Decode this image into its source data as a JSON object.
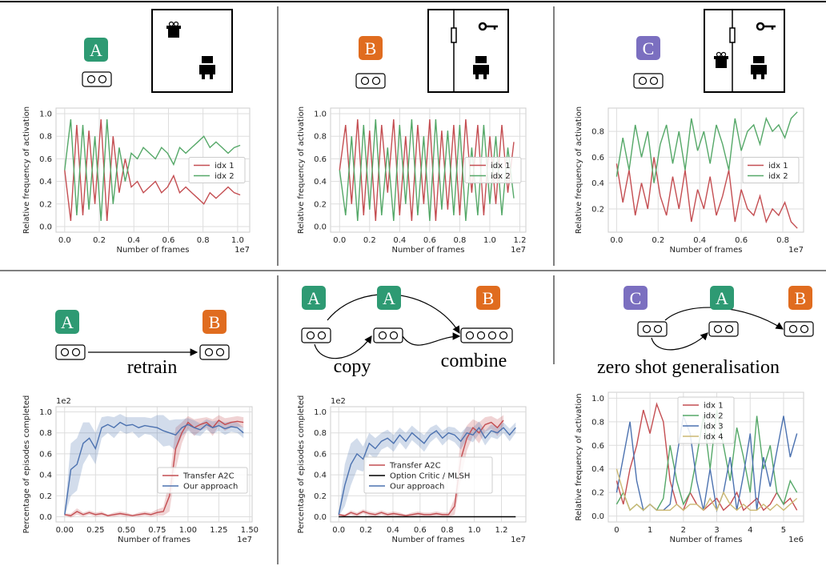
{
  "chart_data": [
    {
      "type": "line",
      "xlabel": "Number of frames",
      "ylabel": "Relative frequency of activation",
      "x_offset": "1e7",
      "diagram": {
        "badges": [
          "A"
        ]
      },
      "x": [
        0,
        0.035,
        0.07,
        0.105,
        0.14,
        0.175,
        0.21,
        0.245,
        0.28,
        0.315,
        0.35,
        0.385,
        0.42,
        0.455,
        0.49,
        0.525,
        0.56,
        0.595,
        0.63,
        0.665,
        0.7,
        0.735,
        0.77,
        0.805,
        0.84,
        0.875,
        0.91,
        0.945,
        0.98,
        1.015
      ],
      "series": [
        {
          "name": "idx 1",
          "color": "#c44e52",
          "values": [
            0.5,
            0.05,
            0.9,
            0.1,
            0.85,
            0.2,
            0.95,
            0.05,
            0.8,
            0.3,
            0.6,
            0.35,
            0.4,
            0.3,
            0.35,
            0.4,
            0.3,
            0.35,
            0.45,
            0.3,
            0.35,
            0.3,
            0.25,
            0.2,
            0.3,
            0.25,
            0.3,
            0.35,
            0.3,
            0.28
          ]
        },
        {
          "name": "idx 2",
          "color": "#55a868",
          "values": [
            0.5,
            0.95,
            0.1,
            0.9,
            0.15,
            0.8,
            0.05,
            0.95,
            0.2,
            0.7,
            0.4,
            0.65,
            0.6,
            0.7,
            0.65,
            0.6,
            0.7,
            0.65,
            0.55,
            0.7,
            0.65,
            0.7,
            0.75,
            0.8,
            0.7,
            0.75,
            0.7,
            0.65,
            0.7,
            0.72
          ]
        }
      ],
      "xlim": [
        -0.05,
        1.07
      ],
      "xticks": [
        {
          "value": 0,
          "label": "0.0"
        },
        0.2,
        0.4,
        0.6,
        0.8,
        {
          "value": 1,
          "label": "1.0"
        }
      ],
      "ylim": [
        -0.05,
        1.05
      ],
      "yticks": [
        {
          "value": 0,
          "label": "0.0"
        },
        0.2,
        0.4,
        0.6,
        0.8,
        {
          "value": 1,
          "label": "1.0"
        }
      ],
      "grid": true,
      "legend": "center right"
    },
    {
      "type": "line",
      "xlabel": "Number of frames",
      "ylabel": "Relative frequency of activation",
      "x_offset": "1e7",
      "diagram": {
        "badges": [
          "B"
        ]
      },
      "x": [
        0,
        0.04,
        0.08,
        0.12,
        0.16,
        0.2,
        0.24,
        0.28,
        0.32,
        0.36,
        0.4,
        0.44,
        0.48,
        0.52,
        0.56,
        0.6,
        0.64,
        0.68,
        0.72,
        0.76,
        0.8,
        0.84,
        0.88,
        0.92,
        0.96,
        1.0,
        1.04,
        1.08,
        1.12,
        1.16
      ],
      "series": [
        {
          "name": "idx 1",
          "color": "#c44e52",
          "values": [
            0.5,
            0.9,
            0.2,
            0.95,
            0.1,
            0.85,
            0.05,
            0.9,
            0.3,
            0.95,
            0.1,
            0.8,
            0.05,
            0.9,
            0.2,
            0.95,
            0.05,
            0.85,
            0.15,
            0.9,
            0.1,
            0.95,
            0.3,
            0.9,
            0.1,
            0.8,
            0.2,
            0.9,
            0.3,
            0.75
          ]
        },
        {
          "name": "idx 2",
          "color": "#55a868",
          "values": [
            0.5,
            0.1,
            0.8,
            0.05,
            0.9,
            0.15,
            0.95,
            0.1,
            0.7,
            0.05,
            0.9,
            0.2,
            0.95,
            0.1,
            0.8,
            0.05,
            0.95,
            0.15,
            0.85,
            0.1,
            0.9,
            0.05,
            0.7,
            0.1,
            0.9,
            0.2,
            0.8,
            0.1,
            0.7,
            0.25
          ]
        }
      ],
      "xlim": [
        -0.06,
        1.24
      ],
      "xticks": [
        {
          "value": 0,
          "label": "0.0"
        },
        0.2,
        0.4,
        0.6,
        0.8,
        {
          "value": 1,
          "label": "1.0"
        },
        1.2
      ],
      "ylim": [
        -0.05,
        1.05
      ],
      "yticks": [
        {
          "value": 0,
          "label": "0.0"
        },
        0.2,
        0.4,
        0.6,
        0.8,
        {
          "value": 1,
          "label": "1.0"
        }
      ],
      "grid": true,
      "legend": "center right"
    },
    {
      "type": "line",
      "xlabel": "Number of frames",
      "ylabel": "Relative frequency of activation",
      "x_offset": "1e7",
      "diagram": {
        "badges": [
          "C"
        ]
      },
      "x": [
        0,
        0.03,
        0.06,
        0.09,
        0.12,
        0.15,
        0.18,
        0.21,
        0.24,
        0.27,
        0.3,
        0.33,
        0.36,
        0.39,
        0.42,
        0.45,
        0.48,
        0.51,
        0.54,
        0.57,
        0.6,
        0.63,
        0.66,
        0.69,
        0.72,
        0.75,
        0.78,
        0.81,
        0.84,
        0.87
      ],
      "series": [
        {
          "name": "idx 1",
          "color": "#c44e52",
          "values": [
            0.55,
            0.25,
            0.5,
            0.15,
            0.4,
            0.2,
            0.6,
            0.3,
            0.15,
            0.45,
            0.2,
            0.5,
            0.1,
            0.35,
            0.2,
            0.45,
            0.15,
            0.3,
            0.5,
            0.1,
            0.35,
            0.2,
            0.15,
            0.3,
            0.1,
            0.2,
            0.15,
            0.25,
            0.1,
            0.05
          ]
        },
        {
          "name": "idx 2",
          "color": "#55a868",
          "values": [
            0.45,
            0.75,
            0.5,
            0.85,
            0.6,
            0.8,
            0.4,
            0.7,
            0.85,
            0.55,
            0.8,
            0.5,
            0.9,
            0.65,
            0.8,
            0.55,
            0.85,
            0.7,
            0.5,
            0.9,
            0.65,
            0.8,
            0.85,
            0.7,
            0.9,
            0.8,
            0.85,
            0.75,
            0.9,
            0.95
          ]
        }
      ],
      "xlim": [
        -0.04,
        0.9
      ],
      "xticks": [
        {
          "value": 0,
          "label": "0.0"
        },
        0.2,
        0.4,
        0.6,
        0.8
      ],
      "ylim": [
        0.02,
        0.98
      ],
      "yticks": [
        0.2,
        0.4,
        0.6,
        0.8
      ],
      "grid": true,
      "legend": "center right"
    },
    {
      "type": "line",
      "xlabel": "Number of frames",
      "ylabel": "Percentage of episodes completed",
      "x_offset": "1e7",
      "y_offset": "1e2",
      "diagram": {
        "badges": [
          "A",
          "B"
        ],
        "captions": [
          "retrain"
        ]
      },
      "x": [
        0,
        0.05,
        0.1,
        0.15,
        0.2,
        0.25,
        0.3,
        0.35,
        0.4,
        0.45,
        0.5,
        0.55,
        0.6,
        0.65,
        0.7,
        0.75,
        0.8,
        0.85,
        0.9,
        0.95,
        1.0,
        1.05,
        1.1,
        1.15,
        1.2,
        1.25,
        1.3,
        1.35,
        1.4,
        1.45
      ],
      "series": [
        {
          "name": "Transfer A2C",
          "color": "#c44e52",
          "values": [
            0.02,
            0.01,
            0.05,
            0.02,
            0.04,
            0.02,
            0.03,
            0.01,
            0.02,
            0.03,
            0.02,
            0.01,
            0.02,
            0.03,
            0.02,
            0.04,
            0.05,
            0.2,
            0.65,
            0.8,
            0.9,
            0.85,
            0.88,
            0.9,
            0.85,
            0.92,
            0.88,
            0.9,
            0.91,
            0.9
          ],
          "error": [
            0.01,
            0.02,
            0.03,
            0.02,
            0.02,
            0.02,
            0.02,
            0.01,
            0.02,
            0.02,
            0.02,
            0.01,
            0.02,
            0.02,
            0.02,
            0.03,
            0.04,
            0.15,
            0.2,
            0.1,
            0.06,
            0.08,
            0.06,
            0.05,
            0.08,
            0.05,
            0.06,
            0.05,
            0.05,
            0.05
          ]
        },
        {
          "name": "Our approach",
          "color": "#4c72b0",
          "values": [
            0.02,
            0.45,
            0.5,
            0.7,
            0.75,
            0.65,
            0.85,
            0.88,
            0.85,
            0.9,
            0.87,
            0.88,
            0.85,
            0.87,
            0.86,
            0.85,
            0.82,
            0.8,
            0.78,
            0.85,
            0.88,
            0.85,
            0.83,
            0.88,
            0.85,
            0.87,
            0.84,
            0.86,
            0.85,
            0.8
          ],
          "error": [
            0.02,
            0.25,
            0.25,
            0.2,
            0.15,
            0.15,
            0.1,
            0.08,
            0.1,
            0.08,
            0.08,
            0.07,
            0.1,
            0.08,
            0.08,
            0.12,
            0.15,
            0.12,
            0.15,
            0.08,
            0.06,
            0.07,
            0.06,
            0.05,
            0.06,
            0.05,
            0.06,
            0.05,
            0.05,
            0.05
          ]
        }
      ],
      "xlim": [
        -0.07,
        1.52
      ],
      "xticks": [
        {
          "value": 0,
          "label": "0.00"
        },
        0.25,
        {
          "value": 0.5,
          "label": "0.50"
        },
        0.75,
        {
          "value": 1,
          "label": "1.00"
        },
        1.25,
        {
          "value": 1.5,
          "label": "1.50"
        }
      ],
      "ylim": [
        -0.05,
        1.05
      ],
      "yticks": [
        {
          "value": 0,
          "label": "0.0"
        },
        0.2,
        0.4,
        0.6,
        0.8,
        {
          "value": 1,
          "label": "1.0"
        }
      ],
      "grid": true,
      "legend": "lower right"
    },
    {
      "type": "line",
      "xlabel": "Number of frames",
      "ylabel": "Percentage of episodes completed",
      "x_offset": "1e7",
      "y_offset": "1e2",
      "diagram": {
        "badges": [
          "A",
          "A",
          "B"
        ],
        "captions": [
          "copy",
          "combine"
        ]
      },
      "x": [
        0,
        0.045,
        0.09,
        0.135,
        0.18,
        0.225,
        0.27,
        0.315,
        0.36,
        0.405,
        0.45,
        0.495,
        0.54,
        0.585,
        0.63,
        0.675,
        0.72,
        0.765,
        0.81,
        0.855,
        0.9,
        0.945,
        0.99,
        1.035,
        1.08,
        1.125,
        1.17,
        1.215,
        1.26,
        1.305
      ],
      "series": [
        {
          "name": "Transfer A2C",
          "color": "#c44e52",
          "values": [
            0.02,
            0.01,
            0.04,
            0.02,
            0.05,
            0.03,
            0.02,
            0.04,
            0.02,
            0.03,
            0.02,
            0.01,
            0.02,
            0.03,
            0.02,
            0.02,
            0.03,
            0.02,
            0.02,
            0.1,
            0.55,
            0.75,
            0.85,
            0.8,
            0.88,
            0.9,
            0.85,
            0.92,
            null,
            null
          ],
          "error": [
            0.01,
            0.01,
            0.02,
            0.02,
            0.02,
            0.02,
            0.02,
            0.02,
            0.02,
            0.02,
            0.02,
            0.01,
            0.02,
            0.02,
            0.02,
            0.02,
            0.02,
            0.02,
            0.02,
            0.08,
            0.2,
            0.12,
            0.08,
            0.1,
            0.07,
            0.06,
            0.08,
            0.05,
            null,
            null
          ]
        },
        {
          "name": "Option Critic / MLSH",
          "color": "#000000",
          "values": [
            0,
            0,
            0,
            0,
            0,
            0,
            0,
            0,
            0,
            0,
            0,
            0,
            0,
            0,
            0,
            0,
            0,
            0,
            0,
            0,
            0,
            0,
            0,
            0,
            0,
            0,
            0,
            0,
            0,
            0
          ]
        },
        {
          "name": "Our approach",
          "color": "#4c72b0",
          "values": [
            0.02,
            0.3,
            0.5,
            0.6,
            0.55,
            0.7,
            0.65,
            0.72,
            0.75,
            0.7,
            0.78,
            0.72,
            0.8,
            0.75,
            0.7,
            0.78,
            0.82,
            0.75,
            0.8,
            0.78,
            0.72,
            0.8,
            0.78,
            0.85,
            0.75,
            0.82,
            0.8,
            0.85,
            0.78,
            0.85
          ],
          "error": [
            0.02,
            0.2,
            0.2,
            0.15,
            0.12,
            0.1,
            0.1,
            0.08,
            0.08,
            0.08,
            0.07,
            0.08,
            0.07,
            0.07,
            0.08,
            0.07,
            0.06,
            0.07,
            0.06,
            0.07,
            0.08,
            0.06,
            0.07,
            0.06,
            0.07,
            0.06,
            0.06,
            0.05,
            0.06,
            0.05
          ]
        }
      ],
      "xlim": [
        -0.06,
        1.38
      ],
      "xticks": [
        {
          "value": 0,
          "label": "0.0"
        },
        0.2,
        0.4,
        0.6,
        0.8,
        {
          "value": 1,
          "label": "1.0"
        },
        1.2
      ],
      "ylim": [
        -0.05,
        1.05
      ],
      "yticks": [
        {
          "value": 0,
          "label": "0.0"
        },
        0.2,
        0.4,
        0.6,
        0.8,
        {
          "value": 1,
          "label": "1.0"
        }
      ],
      "grid": true,
      "legend": "lower center"
    },
    {
      "type": "line",
      "xlabel": "Number of frames",
      "ylabel": "Relative frequency of activation",
      "x_offset": "1e6",
      "diagram": {
        "badges": [
          "C",
          "A",
          "B"
        ],
        "captions": [
          "zero shot generalisation"
        ]
      },
      "x": [
        0,
        0.2,
        0.4,
        0.6,
        0.8,
        1.0,
        1.2,
        1.4,
        1.6,
        1.8,
        2.0,
        2.2,
        2.4,
        2.6,
        2.8,
        3.0,
        3.2,
        3.4,
        3.6,
        3.8,
        4.0,
        4.2,
        4.4,
        4.6,
        4.8,
        5.0,
        5.2,
        5.4
      ],
      "series": [
        {
          "name": "idx 1",
          "color": "#c44e52",
          "values": [
            0.3,
            0.1,
            0.4,
            0.6,
            0.9,
            0.7,
            0.95,
            0.8,
            0.3,
            0.1,
            0.05,
            0.2,
            0.1,
            0.05,
            0.1,
            0.15,
            0.05,
            0.1,
            0.2,
            0.05,
            0.1,
            0.15,
            0.05,
            0.1,
            0.2,
            0.1,
            0.15,
            0.05
          ]
        },
        {
          "name": "idx 2",
          "color": "#55a868",
          "values": [
            0.1,
            0.2,
            0.05,
            0.1,
            0.05,
            0.1,
            0.05,
            0.15,
            0.6,
            0.3,
            0.1,
            0.2,
            0.5,
            0.85,
            0.4,
            0.9,
            0.6,
            0.3,
            0.75,
            0.5,
            0.2,
            0.85,
            0.4,
            0.6,
            0.2,
            0.1,
            0.3,
            0.2
          ]
        },
        {
          "name": "idx 3",
          "color": "#4c72b0",
          "values": [
            0.2,
            0.5,
            0.8,
            0.3,
            0.05,
            0.1,
            0.05,
            0.05,
            0.1,
            0.5,
            0.85,
            0.7,
            0.3,
            0.05,
            0.4,
            0.05,
            0.2,
            0.5,
            0.05,
            0.35,
            0.7,
            0.05,
            0.5,
            0.25,
            0.55,
            0.85,
            0.5,
            0.7
          ]
        },
        {
          "name": "idx 4",
          "color": "#ccb974",
          "values": [
            0.4,
            0.2,
            0.05,
            0.1,
            0.05,
            0.1,
            0.05,
            0.05,
            0.05,
            0.1,
            0.05,
            0.1,
            0.1,
            0.05,
            0.15,
            0.05,
            0.2,
            0.1,
            0.05,
            0.1,
            0.05,
            0.05,
            0.1,
            0.05,
            0.1,
            0.05,
            0.1,
            0.15
          ]
        }
      ],
      "xlim": [
        -0.25,
        5.6
      ],
      "xticks": [
        0,
        1,
        2,
        3,
        4,
        5
      ],
      "ylim": [
        -0.05,
        1.05
      ],
      "yticks": [
        {
          "value": 0,
          "label": "0.0"
        },
        0.2,
        0.4,
        0.6,
        0.8,
        {
          "value": 1,
          "label": "1.0"
        }
      ],
      "grid": true,
      "legend": "upper center"
    }
  ]
}
